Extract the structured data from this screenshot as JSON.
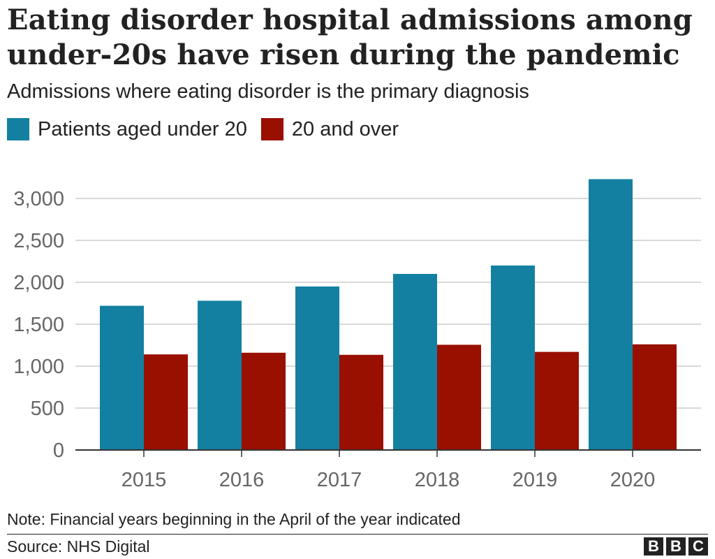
{
  "header": {
    "title": "Eating disorder hospital admissions among under-20s have risen during the pandemic",
    "subtitle": "Admissions where eating disorder is the primary diagnosis"
  },
  "legend": [
    {
      "label": "Patients aged under 20",
      "color": "#1380a1"
    },
    {
      "label": "20 and over",
      "color": "#990f00"
    }
  ],
  "chart_data": {
    "type": "bar",
    "title": "Eating disorder hospital admissions among under-20s have risen during the pandemic",
    "subtitle": "Admissions where eating disorder is the primary diagnosis",
    "categories": [
      "2015",
      "2016",
      "2017",
      "2018",
      "2019",
      "2020"
    ],
    "series": [
      {
        "name": "Patients aged under 20",
        "color": "#1380a1",
        "values": [
          1720,
          1780,
          1950,
          2100,
          2200,
          3230
        ]
      },
      {
        "name": "20 and over",
        "color": "#990f00",
        "values": [
          1140,
          1160,
          1135,
          1255,
          1170,
          1260
        ]
      }
    ],
    "yticks": [
      0,
      500,
      1000,
      1500,
      2000,
      2500,
      3000
    ],
    "ytick_labels": [
      "0",
      "500",
      "1,000",
      "1,500",
      "2,000",
      "2,500",
      "3,000"
    ],
    "ylim": [
      0,
      3000
    ],
    "xlabel": "",
    "ylabel": "",
    "grid": true,
    "legend_position": "top-left"
  },
  "footer": {
    "note": "Note: Financial years beginning in the April of the year indicated",
    "source": "Source: NHS Digital",
    "logo_letters": [
      "B",
      "B",
      "C"
    ]
  }
}
